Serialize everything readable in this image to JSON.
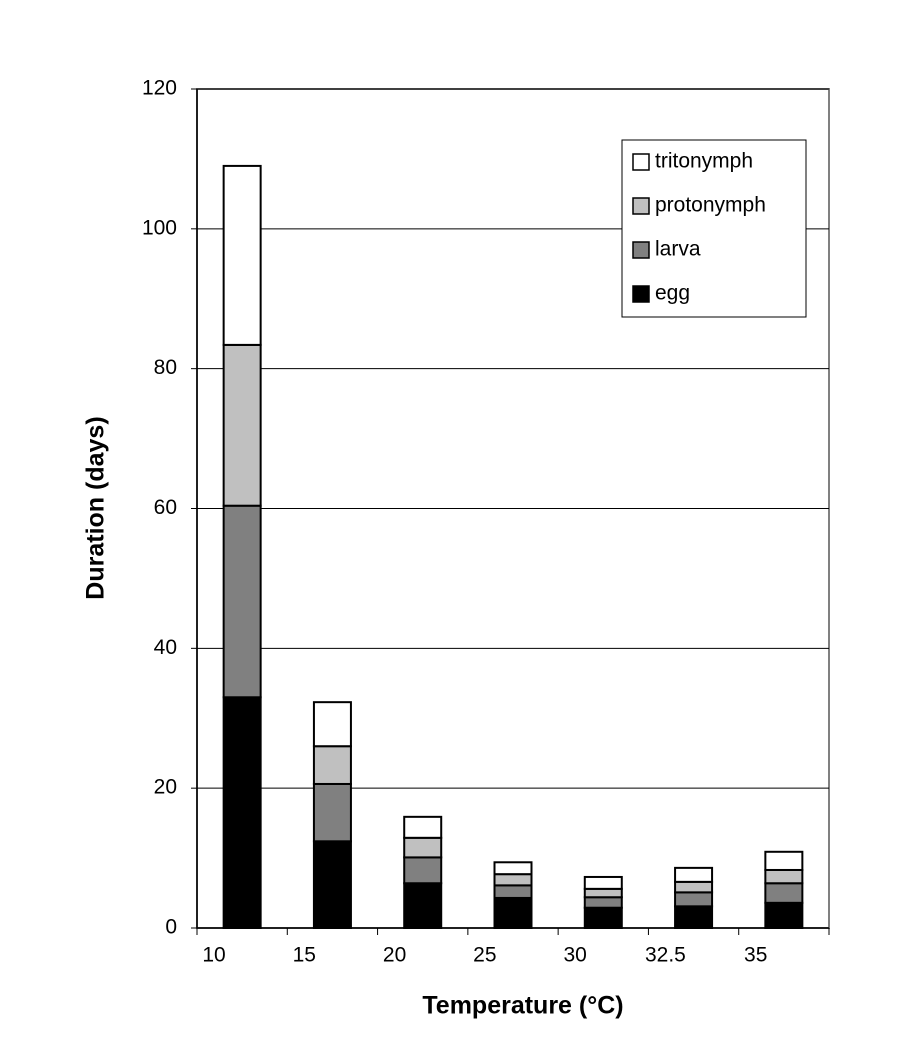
{
  "chart_data": {
    "type": "stacked_bar",
    "xlabel": "Temperature (°C)",
    "ylabel": "Duration (days)",
    "categories": [
      "10",
      "15",
      "20",
      "25",
      "30",
      "32.5",
      "35"
    ],
    "series": [
      {
        "name": "egg",
        "color": "#000000",
        "values": [
          33,
          12.4,
          6.4,
          4.3,
          2.9,
          3.1,
          3.6
        ]
      },
      {
        "name": "larva",
        "color": "#808080",
        "values": [
          27.4,
          8.2,
          3.7,
          1.8,
          1.5,
          2.0,
          2.8
        ]
      },
      {
        "name": "protonymph",
        "color": "#c0c0c0",
        "values": [
          23,
          5.4,
          2.8,
          1.6,
          1.2,
          1.5,
          1.9
        ]
      },
      {
        "name": "tritonymph",
        "color": "#ffffff",
        "values": [
          25.6,
          6.3,
          3.0,
          1.7,
          1.7,
          2.0,
          2.6
        ]
      }
    ],
    "ylim": [
      0,
      120
    ],
    "yticks": [
      0,
      20,
      40,
      60,
      80,
      100,
      120
    ],
    "grid": true,
    "legend": "upper right"
  }
}
